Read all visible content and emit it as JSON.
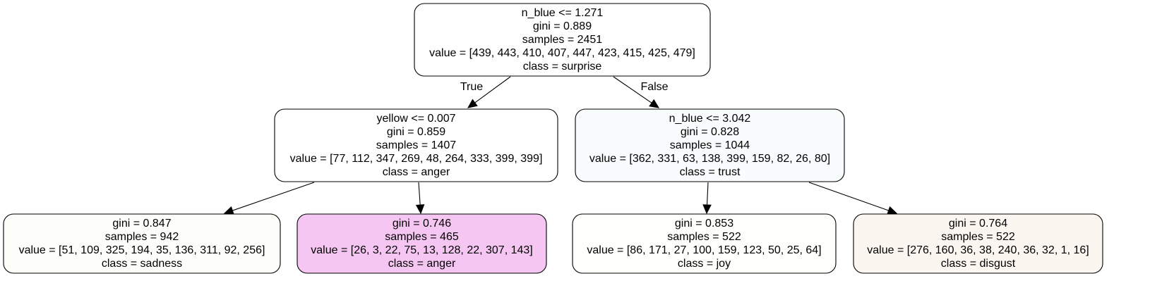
{
  "tree": {
    "nodes": [
      {
        "id": "root",
        "lines": [
          "n_blue <= 1.271",
          "gini = 0.889",
          "samples = 2451",
          "value = [439, 443, 410, 407, 447, 423, 415, 425, 479]",
          "class = surprise"
        ],
        "fill": "#fefefe"
      },
      {
        "id": "left",
        "lines": [
          "yellow <= 0.007",
          "gini = 0.859",
          "samples = 1407",
          "value = [77, 112, 347, 269, 48, 264, 333, 399, 399]",
          "class = anger"
        ],
        "fill": "#ffffff"
      },
      {
        "id": "right",
        "lines": [
          "n_blue <= 3.042",
          "gini = 0.828",
          "samples = 1044",
          "value = [362, 331, 63, 138, 399, 159, 82, 26, 80]",
          "class = trust"
        ],
        "fill": "#f8fcfd"
      },
      {
        "id": "leaf-1",
        "lines": [
          "gini = 0.847",
          "samples = 942",
          "value = [51, 109, 325, 194, 35, 136, 311, 92, 256]",
          "class = sadness"
        ],
        "fill": "#fdfdfa"
      },
      {
        "id": "leaf-2",
        "lines": [
          "gini = 0.746",
          "samples = 465",
          "value = [26, 3, 22, 75, 13, 128, 22, 307, 143]",
          "class = anger"
        ],
        "fill": "#f6c6f2"
      },
      {
        "id": "leaf-3",
        "lines": [
          "gini = 0.853",
          "samples = 522",
          "value = [86, 171, 27, 100, 159, 123, 50, 25, 64]",
          "class = joy"
        ],
        "fill": "#fefefb"
      },
      {
        "id": "leaf-4",
        "lines": [
          "gini = 0.764",
          "samples = 522",
          "value = [276, 160, 36, 38, 240, 36, 32, 1, 16]",
          "class = disgust"
        ],
        "fill": "#fcf6f1"
      }
    ],
    "edges": [
      {
        "from": "root",
        "to": "left",
        "label": "True"
      },
      {
        "from": "root",
        "to": "right",
        "label": "False"
      },
      {
        "from": "left",
        "to": "leaf-1",
        "label": ""
      },
      {
        "from": "left",
        "to": "leaf-2",
        "label": ""
      },
      {
        "from": "right",
        "to": "leaf-3",
        "label": ""
      },
      {
        "from": "right",
        "to": "leaf-4",
        "label": ""
      }
    ]
  }
}
